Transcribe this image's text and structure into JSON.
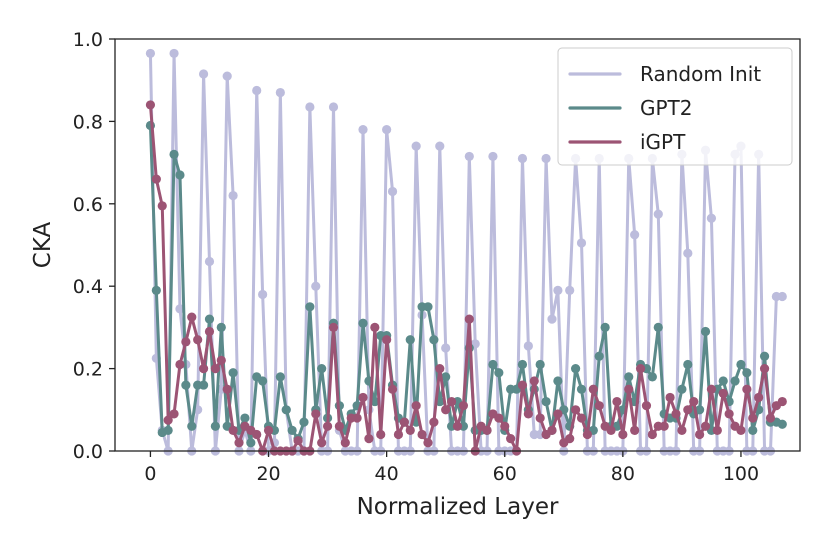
{
  "chart_data": {
    "type": "line",
    "title": "",
    "xlabel": "Normalized Layer",
    "ylabel": "CKA",
    "xlim": [
      -6,
      110
    ],
    "ylim": [
      0,
      1.0
    ],
    "xticks": [
      0,
      20,
      40,
      60,
      80,
      100
    ],
    "xtick_labels": [
      "0",
      "20",
      "40",
      "60",
      "80",
      "100"
    ],
    "yticks": [
      0.0,
      0.2,
      0.4,
      0.6,
      0.8,
      1.0
    ],
    "ytick_labels": [
      "0.0",
      "0.2",
      "0.4",
      "0.6",
      "0.8",
      "1.0"
    ],
    "grid": false,
    "legend_position": "top-right",
    "series": [
      {
        "name": "Random Init",
        "color": "#bcbcdc",
        "x": [
          0,
          1,
          2,
          3,
          4,
          5,
          6,
          7,
          8,
          9,
          10,
          11,
          12,
          13,
          14,
          15,
          16,
          17,
          18,
          19,
          20,
          21,
          22,
          23,
          24,
          25,
          26,
          27,
          28,
          29,
          30,
          31,
          32,
          33,
          34,
          35,
          36,
          37,
          38,
          39,
          40,
          41,
          42,
          43,
          44,
          45,
          46,
          47,
          48,
          49,
          50,
          51,
          52,
          53,
          54,
          55,
          56,
          57,
          58,
          59,
          60,
          61,
          62,
          63,
          64,
          65,
          66,
          67,
          68,
          69,
          70,
          71,
          72,
          73,
          74,
          75,
          76,
          77,
          78,
          79,
          80,
          81,
          82,
          83,
          84,
          85,
          86,
          87,
          88,
          89,
          90,
          91,
          92,
          93,
          94,
          95,
          96,
          97,
          98,
          99,
          100,
          101,
          102,
          103,
          104,
          105,
          106,
          107
        ],
        "values": [
          0.965,
          0.225,
          0.05,
          0.0,
          0.965,
          0.345,
          0.21,
          0.0,
          0.1,
          0.915,
          0.46,
          0.0,
          0.15,
          0.91,
          0.62,
          0.0,
          0.05,
          0.0,
          0.875,
          0.38,
          0.0,
          0.02,
          0.87,
          0.1,
          0.0,
          0.0,
          0.0,
          0.835,
          0.4,
          0.0,
          0.0,
          0.835,
          0.05,
          0.0,
          0.0,
          0.0,
          0.78,
          0.1,
          0.0,
          0.0,
          0.78,
          0.63,
          0.0,
          0.0,
          0.0,
          0.74,
          0.33,
          0.0,
          0.0,
          0.74,
          0.25,
          0.0,
          0.0,
          0.0,
          0.715,
          0.26,
          0.0,
          0.0,
          0.715,
          0.0,
          0.0,
          0.0,
          0.0,
          0.71,
          0.255,
          0.04,
          0.04,
          0.71,
          0.32,
          0.39,
          0.0,
          0.39,
          0.71,
          0.505,
          0.0,
          0.0,
          0.71,
          0.0,
          0.0,
          0.0,
          0.0,
          0.71,
          0.525,
          0.0,
          0.0,
          0.71,
          0.575,
          0.0,
          0.0,
          0.0,
          0.72,
          0.48,
          0.0,
          0.0,
          0.73,
          0.565,
          0.0,
          0.0,
          0.0,
          0.72,
          0.74,
          0.0,
          0.0,
          0.72,
          0.0,
          0.0,
          0.375,
          0.375
        ]
      },
      {
        "name": "GPT2",
        "color": "#5b8a8a",
        "x": [
          0,
          1,
          2,
          3,
          4,
          5,
          6,
          7,
          8,
          9,
          10,
          11,
          12,
          13,
          14,
          15,
          16,
          17,
          18,
          19,
          20,
          21,
          22,
          23,
          24,
          25,
          26,
          27,
          28,
          29,
          30,
          31,
          32,
          33,
          34,
          35,
          36,
          37,
          38,
          39,
          40,
          41,
          42,
          43,
          44,
          45,
          46,
          47,
          48,
          49,
          50,
          51,
          52,
          53,
          54,
          55,
          56,
          57,
          58,
          59,
          60,
          61,
          62,
          63,
          64,
          65,
          66,
          67,
          68,
          69,
          70,
          71,
          72,
          73,
          74,
          75,
          76,
          77,
          78,
          79,
          80,
          81,
          82,
          83,
          84,
          85,
          86,
          87,
          88,
          89,
          90,
          91,
          92,
          93,
          94,
          95,
          96,
          97,
          98,
          99,
          100,
          101,
          102,
          103,
          104,
          105,
          106,
          107
        ],
        "values": [
          0.79,
          0.39,
          0.045,
          0.05,
          0.72,
          0.67,
          0.16,
          0.06,
          0.16,
          0.16,
          0.32,
          0.06,
          0.3,
          0.06,
          0.19,
          0.05,
          0.08,
          0.02,
          0.18,
          0.17,
          0.06,
          0.05,
          0.18,
          0.1,
          0.05,
          0.03,
          0.07,
          0.35,
          0.1,
          0.2,
          0.08,
          0.31,
          0.11,
          0.05,
          0.09,
          0.11,
          0.31,
          0.17,
          0.12,
          0.28,
          0.28,
          0.16,
          0.08,
          0.07,
          0.27,
          0.07,
          0.35,
          0.35,
          0.27,
          0.12,
          0.18,
          0.06,
          0.12,
          0.06,
          0.25,
          0.05,
          0.05,
          0.05,
          0.21,
          0.19,
          0.05,
          0.15,
          0.15,
          0.21,
          0.1,
          0.15,
          0.21,
          0.12,
          0.05,
          0.17,
          0.1,
          0.06,
          0.2,
          0.15,
          0.05,
          0.05,
          0.23,
          0.3,
          0.06,
          0.06,
          0.1,
          0.18,
          0.12,
          0.21,
          0.2,
          0.18,
          0.3,
          0.09,
          0.08,
          0.08,
          0.15,
          0.21,
          0.09,
          0.1,
          0.29,
          0.05,
          0.15,
          0.17,
          0.12,
          0.17,
          0.21,
          0.19,
          0.05,
          0.1,
          0.23,
          0.07,
          0.07,
          0.065
        ]
      },
      {
        "name": "iGPT",
        "color": "#9c5474",
        "x": [
          0,
          1,
          2,
          3,
          4,
          5,
          6,
          7,
          8,
          9,
          10,
          11,
          12,
          13,
          14,
          15,
          16,
          17,
          18,
          19,
          20,
          21,
          22,
          23,
          24,
          25,
          26,
          27,
          28,
          29,
          30,
          31,
          32,
          33,
          34,
          35,
          36,
          37,
          38,
          39,
          40,
          41,
          42,
          43,
          44,
          45,
          46,
          47,
          48,
          49,
          50,
          51,
          52,
          53,
          54,
          55,
          56,
          57,
          58,
          59,
          60,
          61,
          62,
          63,
          64,
          65,
          66,
          67,
          68,
          69,
          70,
          71,
          72,
          73,
          74,
          75,
          76,
          77,
          78,
          79,
          80,
          81,
          82,
          83,
          84,
          85,
          86,
          87,
          88,
          89,
          90,
          91,
          92,
          93,
          94,
          95,
          96,
          97,
          98,
          99,
          100,
          101,
          102,
          103,
          104,
          105,
          106,
          107
        ],
        "values": [
          0.84,
          0.66,
          0.595,
          0.075,
          0.09,
          0.21,
          0.265,
          0.325,
          0.27,
          0.2,
          0.29,
          0.2,
          0.22,
          0.15,
          0.05,
          0.02,
          0.06,
          0.05,
          0.04,
          0.0,
          0.05,
          0.0,
          0.0,
          0.0,
          0.0,
          0.025,
          0.0,
          0.0,
          0.09,
          0.02,
          0.06,
          0.3,
          0.06,
          0.02,
          0.08,
          0.08,
          0.13,
          0.03,
          0.3,
          0.04,
          0.27,
          0.15,
          0.04,
          0.07,
          0.05,
          0.11,
          0.04,
          0.02,
          0.07,
          0.2,
          0.1,
          0.12,
          0.06,
          0.11,
          0.32,
          0.0,
          0.06,
          0.05,
          0.09,
          0.08,
          0.06,
          0.03,
          0.0,
          0.16,
          0.09,
          0.17,
          0.08,
          0.04,
          0.05,
          0.09,
          0.02,
          0.03,
          0.1,
          0.08,
          0.04,
          0.15,
          0.11,
          0.06,
          0.05,
          0.12,
          0.04,
          0.15,
          0.05,
          0.2,
          0.11,
          0.04,
          0.06,
          0.06,
          0.13,
          0.09,
          0.05,
          0.1,
          0.12,
          0.04,
          0.06,
          0.15,
          0.05,
          0.14,
          0.09,
          0.06,
          0.05,
          0.15,
          0.08,
          0.13,
          0.2,
          0.08,
          0.11,
          0.12
        ]
      }
    ]
  }
}
